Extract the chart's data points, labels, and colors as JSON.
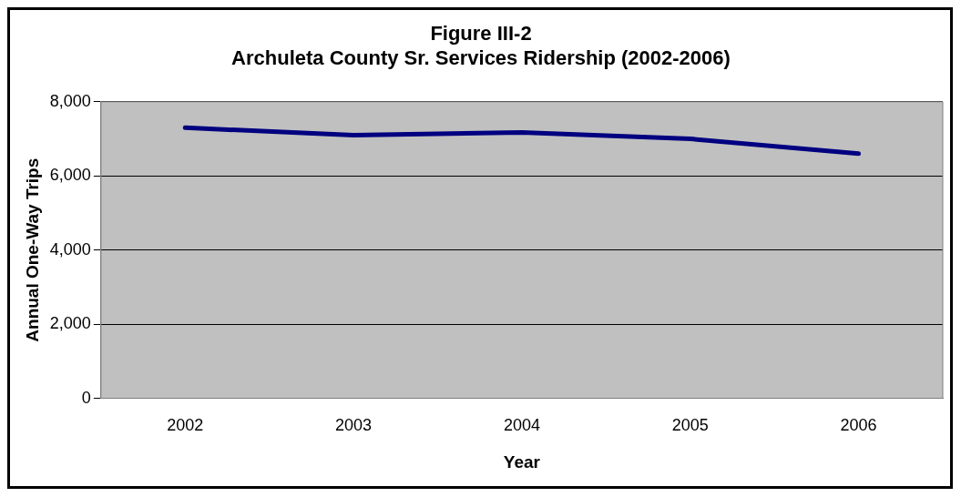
{
  "chart_data": {
    "type": "line",
    "title": [
      "Figure III-2",
      "Archuleta County Sr. Services Ridership (2002-2006)"
    ],
    "xlabel": "Year",
    "ylabel": "Annual One-Way Trips",
    "categories": [
      "2002",
      "2003",
      "2004",
      "2005",
      "2006"
    ],
    "series": [
      {
        "color": "#000080",
        "values": [
          7300,
          7100,
          7170,
          7000,
          6600
        ]
      }
    ],
    "ylim": [
      0,
      8000
    ],
    "yticks": [
      {
        "value": 0,
        "label": "0"
      },
      {
        "value": 2000,
        "label": "2,000"
      },
      {
        "value": 4000,
        "label": "4,000"
      },
      {
        "value": 6000,
        "label": "6,000"
      },
      {
        "value": 8000,
        "label": "8,000"
      }
    ],
    "grid": "y",
    "legend": false,
    "marker": "none"
  }
}
